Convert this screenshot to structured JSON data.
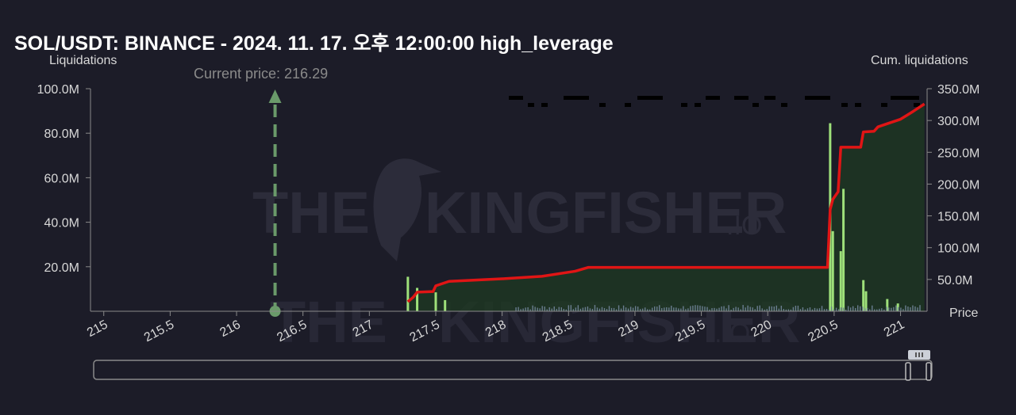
{
  "title": "SOL/USDT: BINANCE - 2024. 11. 17. 오후 12:00:00 high_leverage",
  "watermark": {
    "line1_left": "THE",
    "line1_right": "KINGFISHER",
    "suffix": ".IO"
  },
  "colors": {
    "background": "#1c1c28",
    "cum_line": "#e01515",
    "cum_fill": "#1e3a22",
    "bars": "#9ee07a",
    "current_price": "#6a9a6a",
    "text": "#d8d8d8"
  },
  "chart_data": {
    "type": "bar",
    "y_left_label": "Liquidations",
    "y_right_label": "Cum. liquidations",
    "x_label": "Price",
    "xlim": [
      214.9,
      221.2
    ],
    "ylim_left": [
      0,
      100000000
    ],
    "ylim_right": [
      0,
      350000000
    ],
    "x_ticks": [
      "215",
      "215.5",
      "216",
      "216.5",
      "217",
      "217.5",
      "218",
      "218.5",
      "219",
      "219.5",
      "220",
      "220.5",
      "221"
    ],
    "y_left_ticks": [
      "100.0M",
      "80.0M",
      "60.0M",
      "40.0M",
      "20.0M"
    ],
    "y_right_ticks": [
      "350.0M",
      "300.0M",
      "250.0M",
      "200.0M",
      "150.0M",
      "100.0M",
      "50.0M"
    ],
    "current_price": {
      "label": "Current price: 216.29",
      "value": 216.29
    },
    "liquidation_bars": [
      {
        "price": 217.29,
        "value": 15500000
      },
      {
        "price": 217.36,
        "value": 10500000
      },
      {
        "price": 217.5,
        "value": 8500000
      },
      {
        "price": 217.57,
        "value": 5000000
      },
      {
        "price": 220.47,
        "value": 84500000
      },
      {
        "price": 220.49,
        "value": 36000000
      },
      {
        "price": 220.55,
        "value": 27000000
      },
      {
        "price": 220.57,
        "value": 55000000
      },
      {
        "price": 220.72,
        "value": 14000000
      },
      {
        "price": 220.74,
        "value": 9000000
      },
      {
        "price": 220.9,
        "value": 5500000
      },
      {
        "price": 220.98,
        "value": 3500000
      }
    ],
    "cumulative": [
      [
        217.29,
        15000000
      ],
      [
        217.33,
        22000000
      ],
      [
        217.36,
        30000000
      ],
      [
        217.48,
        31000000
      ],
      [
        217.5,
        40000000
      ],
      [
        217.6,
        47000000
      ],
      [
        218.0,
        51000000
      ],
      [
        218.3,
        55000000
      ],
      [
        218.55,
        63000000
      ],
      [
        218.65,
        69000000
      ],
      [
        220.45,
        69000000
      ],
      [
        220.47,
        160000000
      ],
      [
        220.49,
        176000000
      ],
      [
        220.53,
        188000000
      ],
      [
        220.55,
        258000000
      ],
      [
        220.7,
        258000000
      ],
      [
        220.72,
        282000000
      ],
      [
        220.8,
        283000000
      ],
      [
        220.83,
        290000000
      ],
      [
        220.9,
        295000000
      ],
      [
        221.0,
        302000000
      ],
      [
        221.1,
        315000000
      ],
      [
        221.18,
        326000000
      ]
    ]
  }
}
